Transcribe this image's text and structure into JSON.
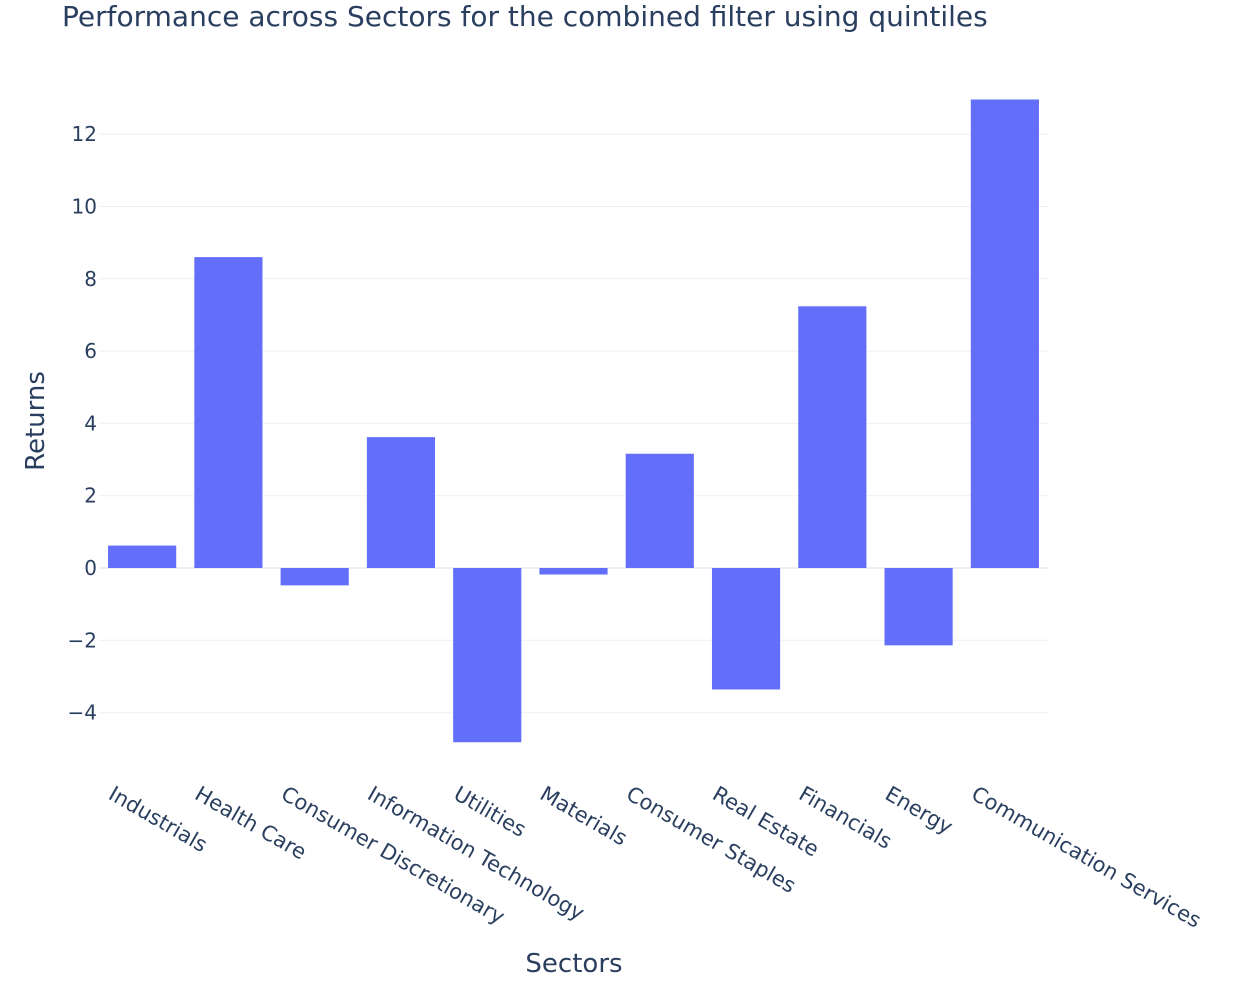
{
  "chart_data": {
    "type": "bar",
    "title": "Performance across Sectors for the combined filter using quintiles",
    "xlabel": "Sectors",
    "ylabel": "Returns",
    "categories": [
      "Industrials",
      "Health Care",
      "Consumer Discretionary",
      "Information Technology",
      "Utilities",
      "Materials",
      "Consumer Staples",
      "Real Estate",
      "Financials",
      "Energy",
      "Communication Services"
    ],
    "values": [
      0.62,
      8.6,
      -0.48,
      3.62,
      -4.82,
      -0.18,
      3.16,
      -3.36,
      7.24,
      -2.14,
      12.96
    ],
    "ylim": [
      -5.2,
      13.6
    ],
    "yticks": [
      12,
      10,
      8,
      6,
      4,
      2,
      0,
      -2,
      -4
    ],
    "ytick_labels": [
      "12",
      "10",
      "8",
      "6",
      "4",
      "2",
      "0",
      "−2",
      "−4"
    ],
    "bar_color": "#636efa",
    "grid": true
  }
}
